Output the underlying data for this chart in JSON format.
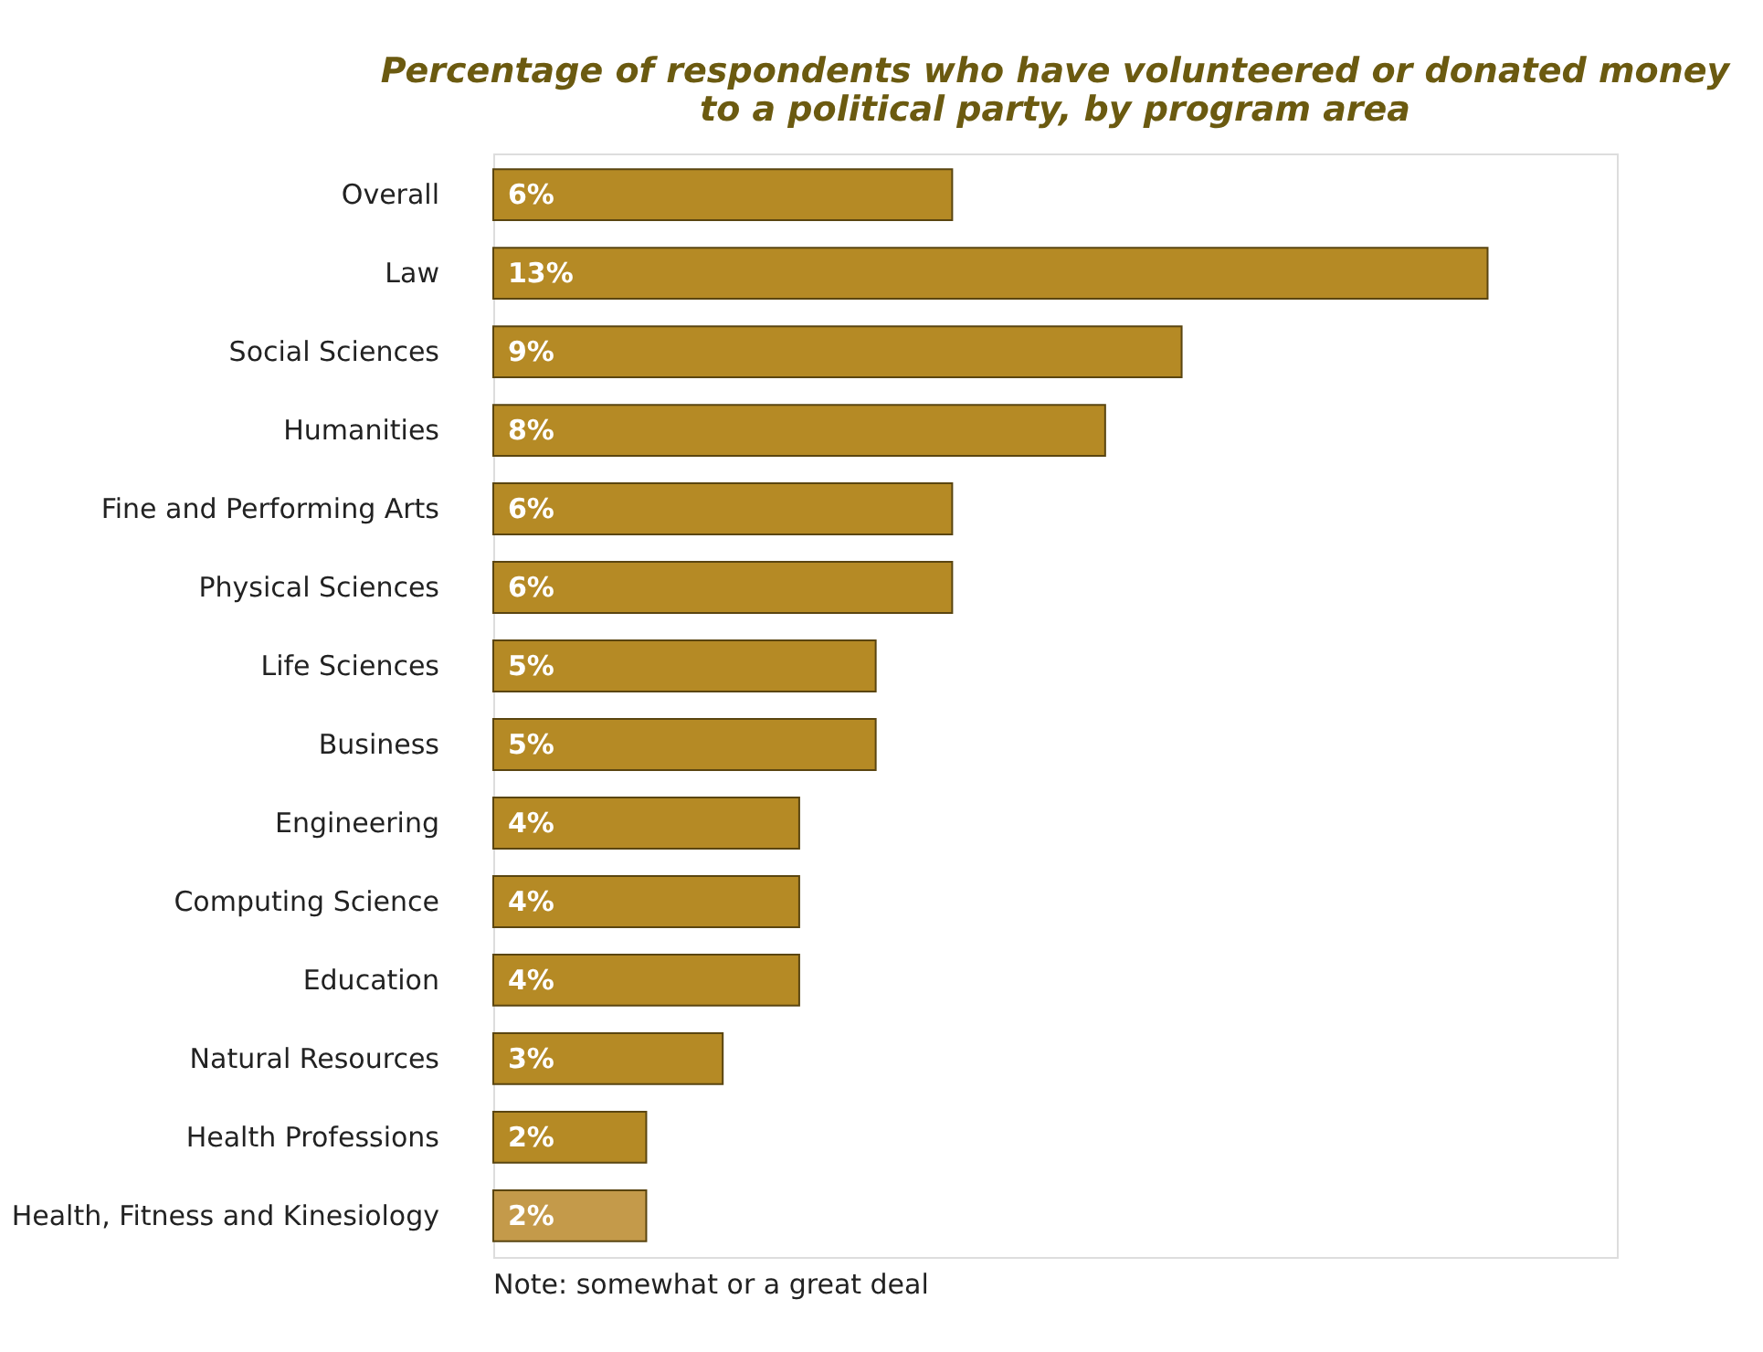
{
  "chart_data": {
    "type": "bar",
    "orientation": "horizontal",
    "title": "Percentage of respondents who have volunteered or donated money\nto a political party, by program area",
    "categories": [
      "Overall",
      "Law",
      "Social Sciences",
      "Humanities",
      "Fine and Performing Arts",
      "Physical Sciences",
      "Life Sciences",
      "Business",
      "Engineering",
      "Computing Science",
      "Education",
      "Natural Resources",
      "Health Professions",
      "Health, Fitness and Kinesiology"
    ],
    "values": [
      6,
      13,
      9,
      8,
      6,
      6,
      5,
      5,
      4,
      4,
      4,
      3,
      2,
      2
    ],
    "value_labels": [
      "6%",
      "13%",
      "9%",
      "8%",
      "6%",
      "6%",
      "5%",
      "5%",
      "4%",
      "4%",
      "4%",
      "3%",
      "2%",
      "2%"
    ],
    "colors": [
      "#b58a25",
      "#b58a25",
      "#b58a25",
      "#b58a25",
      "#b58a25",
      "#b58a25",
      "#b58a25",
      "#b58a25",
      "#b58a25",
      "#b58a25",
      "#b58a25",
      "#b58a25",
      "#b58a25",
      "#c49a4a"
    ],
    "annotations": [
      "Note: somewhat or a great deal"
    ],
    "grid": false
  }
}
